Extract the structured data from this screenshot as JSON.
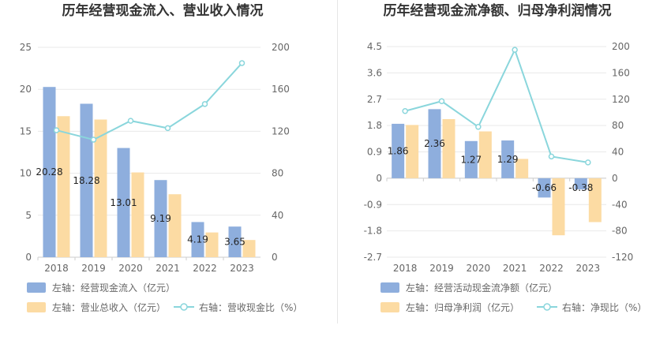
{
  "chart_data": [
    {
      "type": "bar",
      "title": "历年经营现金流入、营业收入情况",
      "categories": [
        "2018",
        "2019",
        "2020",
        "2021",
        "2022",
        "2023"
      ],
      "left_axis": {
        "ylim": [
          0,
          25
        ],
        "ticks": [
          "0",
          "5",
          "10",
          "15",
          "20",
          "25"
        ]
      },
      "right_axis": {
        "ylim": [
          0,
          200
        ],
        "ticks": [
          "0",
          "40",
          "80",
          "120",
          "160",
          "200"
        ]
      },
      "series": [
        {
          "name": "左轴：经营现金流入（亿元）",
          "type": "bar",
          "axis": "left",
          "color": "#8eaedd",
          "values": [
            20.28,
            18.28,
            13.01,
            9.19,
            4.19,
            3.65
          ],
          "labels": [
            "20.28",
            "18.28",
            "13.01",
            "9.19",
            "4.19",
            "3.65"
          ]
        },
        {
          "name": "左轴：营业总收入（亿元）",
          "type": "bar",
          "axis": "left",
          "color": "#fcdba3",
          "values": [
            16.8,
            16.4,
            10.1,
            7.5,
            2.95,
            2.05
          ]
        },
        {
          "name": "右轴：营收现金比（%）",
          "type": "line",
          "axis": "right",
          "color": "#8ad6dc",
          "values": [
            121,
            112,
            130,
            123,
            146,
            185
          ]
        }
      ],
      "legend_placement": "bottom"
    },
    {
      "type": "bar",
      "title": "历年经营现金流净额、归母净利润情况",
      "categories": [
        "2018",
        "2019",
        "2020",
        "2021",
        "2022",
        "2023"
      ],
      "left_axis": {
        "ylim": [
          -2.7,
          4.5
        ],
        "ticks": [
          "-2.7",
          "-1.8",
          "-0.9",
          "0",
          "0.9",
          "1.8",
          "2.7",
          "3.6",
          "4.5"
        ]
      },
      "right_axis": {
        "ylim": [
          -120,
          200
        ],
        "ticks": [
          "-120",
          "-80",
          "-40",
          "0",
          "40",
          "80",
          "120",
          "160",
          "200"
        ]
      },
      "series": [
        {
          "name": "左轴：经营活动现金流净额（亿元）",
          "type": "bar",
          "axis": "left",
          "color": "#8eaedd",
          "values": [
            1.86,
            2.36,
            1.27,
            1.29,
            -0.66,
            -0.38
          ],
          "labels": [
            "1.86",
            "2.36",
            "1.27",
            "1.29",
            "-0.66",
            "-0.38"
          ]
        },
        {
          "name": "左轴：归母净利润（亿元）",
          "type": "bar",
          "axis": "left",
          "color": "#fcdba3",
          "values": [
            1.82,
            2.02,
            1.6,
            0.66,
            -1.95,
            -1.5
          ]
        },
        {
          "name": "右轴：净现比（%）",
          "type": "line",
          "axis": "right",
          "color": "#8ad6dc",
          "values": [
            102,
            117,
            78,
            195,
            33,
            24
          ]
        }
      ],
      "legend_placement": "bottom"
    }
  ]
}
